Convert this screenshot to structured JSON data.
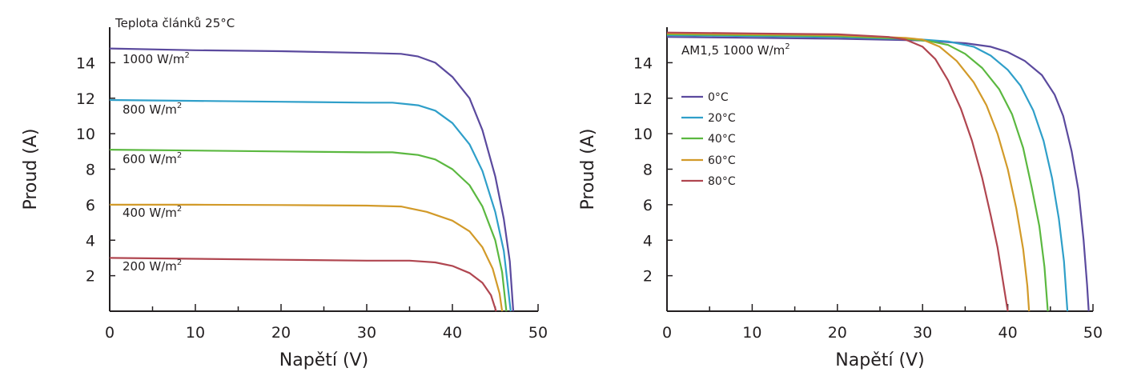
{
  "chart_data": [
    {
      "type": "line",
      "title": "Teplota článků 25°C",
      "xlabel": "Napětí (V)",
      "ylabel": "Proud (A)",
      "xlim": [
        0,
        50
      ],
      "ylim": [
        0,
        16
      ],
      "x_ticks": [
        "0",
        "10",
        "20",
        "30",
        "40",
        "50"
      ],
      "y_ticks": [
        "2",
        "4",
        "6",
        "8",
        "10",
        "12",
        "14"
      ],
      "series": [
        {
          "name": "1000 W/m²",
          "unit_base": "1000 W/m",
          "unit_sup": "2",
          "color": "#5b4a9e",
          "points": [
            [
              0,
              14.8
            ],
            [
              10,
              14.7
            ],
            [
              20,
              14.65
            ],
            [
              30,
              14.55
            ],
            [
              34,
              14.5
            ],
            [
              36,
              14.35
            ],
            [
              38,
              14.0
            ],
            [
              40,
              13.2
            ],
            [
              42,
              12.0
            ],
            [
              43.5,
              10.2
            ],
            [
              45,
              7.6
            ],
            [
              46,
              5.2
            ],
            [
              46.7,
              2.8
            ],
            [
              47.1,
              0.0
            ]
          ]
        },
        {
          "name": "800 W/m²",
          "unit_base": "800 W/m",
          "unit_sup": "2",
          "color": "#2f9fc9",
          "points": [
            [
              0,
              11.9
            ],
            [
              10,
              11.85
            ],
            [
              20,
              11.8
            ],
            [
              30,
              11.75
            ],
            [
              33,
              11.75
            ],
            [
              36,
              11.6
            ],
            [
              38,
              11.3
            ],
            [
              40,
              10.6
            ],
            [
              42,
              9.4
            ],
            [
              43.5,
              7.9
            ],
            [
              45,
              5.6
            ],
            [
              46,
              3.4
            ],
            [
              46.8,
              0.0
            ]
          ]
        },
        {
          "name": "600 W/m²",
          "unit_base": "600 W/m",
          "unit_sup": "2",
          "color": "#5bb840",
          "points": [
            [
              0,
              9.1
            ],
            [
              10,
              9.05
            ],
            [
              20,
              9.0
            ],
            [
              30,
              8.95
            ],
            [
              33,
              8.95
            ],
            [
              36,
              8.8
            ],
            [
              38,
              8.55
            ],
            [
              40,
              8.0
            ],
            [
              42,
              7.1
            ],
            [
              43.5,
              5.9
            ],
            [
              45,
              4.0
            ],
            [
              45.8,
              2.2
            ],
            [
              46.3,
              0.0
            ]
          ]
        },
        {
          "name": "400 W/m²",
          "unit_base": "400 W/m",
          "unit_sup": "2",
          "color": "#d29a29",
          "points": [
            [
              0,
              6.0
            ],
            [
              10,
              6.0
            ],
            [
              20,
              5.98
            ],
            [
              30,
              5.95
            ],
            [
              34,
              5.9
            ],
            [
              37,
              5.6
            ],
            [
              40,
              5.1
            ],
            [
              42,
              4.5
            ],
            [
              43.5,
              3.6
            ],
            [
              44.7,
              2.4
            ],
            [
              45.5,
              1.0
            ],
            [
              45.8,
              0.0
            ]
          ]
        },
        {
          "name": "200 W/m²",
          "unit_base": "200 W/m",
          "unit_sup": "2",
          "color": "#b04650",
          "points": [
            [
              0,
              3.0
            ],
            [
              10,
              2.95
            ],
            [
              20,
              2.9
            ],
            [
              30,
              2.85
            ],
            [
              35,
              2.85
            ],
            [
              38,
              2.75
            ],
            [
              40,
              2.55
            ],
            [
              42,
              2.15
            ],
            [
              43.5,
              1.6
            ],
            [
              44.5,
              0.9
            ],
            [
              45.1,
              0.0
            ]
          ]
        }
      ]
    },
    {
      "type": "line",
      "title": "AM1,5 1000 W/m²",
      "title_base": "AM1,5 1000 W/m",
      "title_sup": "2",
      "xlabel": "Napětí (V)",
      "ylabel": "Proud (A)",
      "xlim": [
        0,
        50
      ],
      "ylim": [
        0,
        16
      ],
      "x_ticks": [
        "0",
        "10",
        "20",
        "30",
        "40",
        "50"
      ],
      "y_ticks": [
        "2",
        "4",
        "6",
        "8",
        "10",
        "12",
        "14"
      ],
      "legend_position": "left",
      "series": [
        {
          "name": "0°C",
          "color": "#5b4a9e",
          "points": [
            [
              0,
              15.45
            ],
            [
              10,
              15.4
            ],
            [
              20,
              15.35
            ],
            [
              30,
              15.25
            ],
            [
              35,
              15.1
            ],
            [
              38,
              14.9
            ],
            [
              40,
              14.6
            ],
            [
              42,
              14.1
            ],
            [
              44,
              13.3
            ],
            [
              45.5,
              12.2
            ],
            [
              46.5,
              11.0
            ],
            [
              47.5,
              9.0
            ],
            [
              48.3,
              6.8
            ],
            [
              48.9,
              4.0
            ],
            [
              49.3,
              1.5
            ],
            [
              49.5,
              0.0
            ]
          ]
        },
        {
          "name": "20°C",
          "color": "#2f9fc9",
          "points": [
            [
              0,
              15.55
            ],
            [
              10,
              15.5
            ],
            [
              20,
              15.45
            ],
            [
              30,
              15.3
            ],
            [
              33,
              15.2
            ],
            [
              36,
              14.9
            ],
            [
              38,
              14.4
            ],
            [
              40,
              13.6
            ],
            [
              41.5,
              12.7
            ],
            [
              43,
              11.3
            ],
            [
              44.2,
              9.6
            ],
            [
              45.2,
              7.5
            ],
            [
              46,
              5.2
            ],
            [
              46.6,
              2.8
            ],
            [
              47.0,
              0.0
            ]
          ]
        },
        {
          "name": "40°C",
          "color": "#5bb840",
          "points": [
            [
              0,
              15.6
            ],
            [
              10,
              15.55
            ],
            [
              20,
              15.5
            ],
            [
              28,
              15.35
            ],
            [
              31,
              15.2
            ],
            [
              33,
              15.0
            ],
            [
              35,
              14.5
            ],
            [
              37,
              13.7
            ],
            [
              39,
              12.5
            ],
            [
              40.5,
              11.1
            ],
            [
              41.8,
              9.2
            ],
            [
              42.8,
              7.0
            ],
            [
              43.7,
              4.8
            ],
            [
              44.3,
              2.5
            ],
            [
              44.7,
              0.0
            ]
          ]
        },
        {
          "name": "60°C",
          "color": "#d29a29",
          "points": [
            [
              0,
              15.65
            ],
            [
              10,
              15.6
            ],
            [
              20,
              15.55
            ],
            [
              28,
              15.4
            ],
            [
              30,
              15.3
            ],
            [
              32,
              14.9
            ],
            [
              34,
              14.1
            ],
            [
              36,
              12.9
            ],
            [
              37.5,
              11.6
            ],
            [
              38.8,
              10.0
            ],
            [
              40,
              8.0
            ],
            [
              41,
              5.8
            ],
            [
              41.8,
              3.5
            ],
            [
              42.3,
              1.4
            ],
            [
              42.5,
              0.0
            ]
          ]
        },
        {
          "name": "80°C",
          "color": "#b04650",
          "points": [
            [
              0,
              15.7
            ],
            [
              10,
              15.65
            ],
            [
              20,
              15.6
            ],
            [
              26,
              15.45
            ],
            [
              28,
              15.3
            ],
            [
              30,
              14.9
            ],
            [
              31.5,
              14.2
            ],
            [
              33,
              13.0
            ],
            [
              34.5,
              11.4
            ],
            [
              35.8,
              9.6
            ],
            [
              37,
              7.5
            ],
            [
              38,
              5.4
            ],
            [
              38.8,
              3.6
            ],
            [
              39.4,
              1.8
            ],
            [
              40.0,
              0.0
            ]
          ]
        }
      ]
    }
  ]
}
